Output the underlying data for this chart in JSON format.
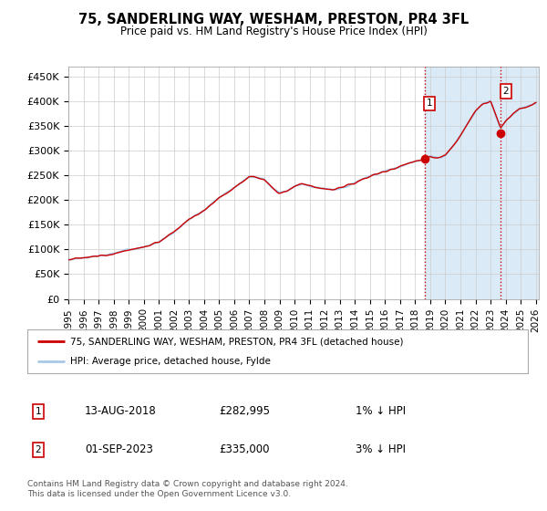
{
  "title": "75, SANDERLING WAY, WESHAM, PRESTON, PR4 3FL",
  "subtitle": "Price paid vs. HM Land Registry's House Price Index (HPI)",
  "ylabel_ticks": [
    "£0",
    "£50K",
    "£100K",
    "£150K",
    "£200K",
    "£250K",
    "£300K",
    "£350K",
    "£400K",
    "£450K"
  ],
  "ytick_values": [
    0,
    50000,
    100000,
    150000,
    200000,
    250000,
    300000,
    350000,
    400000,
    450000
  ],
  "ylim": [
    0,
    470000
  ],
  "xlim_start": 1995.3,
  "xlim_end": 2026.2,
  "xticks": [
    1995,
    1996,
    1997,
    1998,
    1999,
    2000,
    2001,
    2002,
    2003,
    2004,
    2005,
    2006,
    2007,
    2008,
    2009,
    2010,
    2011,
    2012,
    2013,
    2014,
    2015,
    2016,
    2017,
    2018,
    2019,
    2020,
    2021,
    2022,
    2023,
    2024,
    2025,
    2026
  ],
  "hpi_color": "#a8c8e8",
  "hpi_fill_color": "#dbeaf7",
  "price_color": "#cc0000",
  "marker1_year": 2018.617,
  "marker1_value": 282995,
  "marker2_year": 2023.667,
  "marker2_value": 335000,
  "marker1_date": "13-AUG-2018",
  "marker1_price": "£282,995",
  "marker1_hpi": "1% ↓ HPI",
  "marker2_date": "01-SEP-2023",
  "marker2_price": "£335,000",
  "marker2_hpi": "3% ↓ HPI",
  "legend_line1": "75, SANDERLING WAY, WESHAM, PRESTON, PR4 3FL (detached house)",
  "legend_line2": "HPI: Average price, detached house, Fylde",
  "footer": "Contains HM Land Registry data © Crown copyright and database right 2024.\nThis data is licensed under the Open Government Licence v3.0.",
  "background_color": "#ffffff",
  "plot_bg_color": "#ffffff",
  "grid_color": "#cccccc",
  "vline_color": "#cc0000",
  "shade_start_year": 2018.617,
  "shade_end_year": 2026.2
}
